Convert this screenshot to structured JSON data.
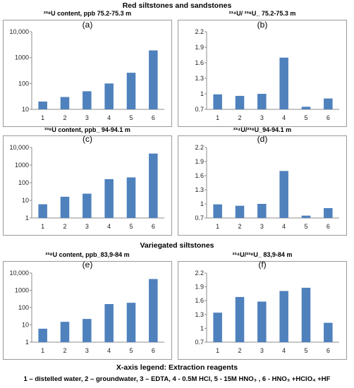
{
  "section_titles": [
    "Red siltstones and sandstones",
    "Variegated siltstones"
  ],
  "legend": {
    "title": "X-axis legend:  Extraction reagents",
    "text": "1 – distelled water, 2 – groundwater,  3 – EDTA, 4 - 0.5M HCl, 5 - 15M HNO₃ , 6 - HNO₃ +HClO₄ +HF"
  },
  "colors": {
    "bar": "#4f81bd",
    "axis": "#8c8c8c",
    "border": "#9a9a9a"
  },
  "chart_data": [
    {
      "type": "bar",
      "tag": "(a)",
      "title": "²³⁸U content, ppb  75.2-75.3 m",
      "yscale": "log",
      "ylim": [
        10,
        10000
      ],
      "yticks": [
        "10",
        "100",
        "1000",
        "10,000"
      ],
      "categories": [
        "1",
        "2",
        "3",
        "4",
        "5",
        "6"
      ],
      "values": [
        20,
        30,
        50,
        100,
        260,
        1900
      ]
    },
    {
      "type": "bar",
      "tag": "(b)",
      "title": "²³⁴U/ ²³⁸U_ 75.2-75.3 m",
      "yscale": "linear",
      "ylim": [
        0.7,
        2.2
      ],
      "yticks": [
        "0.7",
        "1",
        "1.3",
        "1.6",
        "1.9",
        "2.2"
      ],
      "categories": [
        "1",
        "2",
        "3",
        "4",
        "5",
        "6"
      ],
      "values": [
        0.99,
        0.96,
        1.0,
        1.7,
        0.75,
        0.91
      ]
    },
    {
      "type": "bar",
      "tag": "(c)",
      "title": "²³⁸U content, ppb_ 94-94.1 m",
      "yscale": "log",
      "ylim": [
        1,
        10000
      ],
      "yticks": [
        "1",
        "10",
        "100",
        "1000",
        "10,000"
      ],
      "categories": [
        "1",
        "2",
        "3",
        "4",
        "5",
        "6"
      ],
      "values": [
        6,
        16,
        24,
        160,
        200,
        4500
      ]
    },
    {
      "type": "bar",
      "tag": "(d)",
      "title": "²³⁴U/²³⁸U_94-94.1 m",
      "yscale": "linear",
      "ylim": [
        0.7,
        2.2
      ],
      "yticks": [
        "0.7",
        "1",
        "1.3",
        "1.6",
        "1.9",
        "2.2"
      ],
      "categories": [
        "1",
        "2",
        "3",
        "4",
        "5",
        "6"
      ],
      "values": [
        0.99,
        0.96,
        1.0,
        1.7,
        0.75,
        0.91
      ]
    },
    {
      "type": "bar",
      "tag": "(e)",
      "title": "²³⁸U content, ppb_83,9-84 m",
      "yscale": "log",
      "ylim": [
        1,
        10000
      ],
      "yticks": [
        "1",
        "10",
        "100",
        "1000",
        "10,000"
      ],
      "categories": [
        "1",
        "2",
        "3",
        "4",
        "5",
        "6"
      ],
      "values": [
        6,
        15,
        22,
        160,
        190,
        4500
      ]
    },
    {
      "type": "bar",
      "tag": "(f)",
      "title": "²³⁴U/²³⁸U_ 83,9-84 m",
      "yscale": "linear",
      "ylim": [
        0.7,
        2.2
      ],
      "yticks": [
        "0.7",
        "1",
        "1.3",
        "1.6",
        "1.9",
        "2.2"
      ],
      "categories": [
        "1",
        "2",
        "3",
        "4",
        "5",
        "6"
      ],
      "values": [
        1.34,
        1.68,
        1.58,
        1.81,
        1.88,
        1.12
      ]
    }
  ]
}
